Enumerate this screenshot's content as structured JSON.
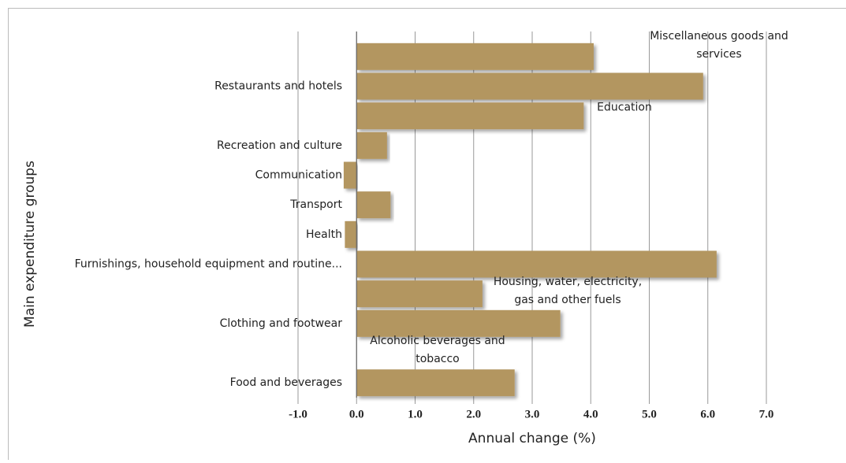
{
  "chart_data": {
    "type": "barh",
    "categories": [
      "Miscellaneous goods and services",
      "Restaurants and hotels",
      "Education",
      "Recreation and culture",
      "Communication",
      "Transport",
      "Health",
      "Furnishings, household equipment and routine...",
      "Housing, water, electricity, gas and other fuels",
      "Clothing and footwear",
      "Alcoholic beverages and tobacco",
      "Food and  beverages"
    ],
    "values": [
      4.05,
      5.92,
      3.88,
      0.52,
      -0.22,
      0.58,
      -0.2,
      6.15,
      2.15,
      3.48,
      0,
      2.7
    ],
    "color": "#b39660",
    "xlim": [
      -1,
      7
    ],
    "xticks": [
      {
        "value": -1,
        "label": "-1.0"
      },
      {
        "value": 0,
        "label": "0.0"
      },
      {
        "value": 1,
        "label": "1.0"
      },
      {
        "value": 2,
        "label": "2.0"
      },
      {
        "value": 3,
        "label": "3.0"
      },
      {
        "value": 4,
        "label": "4.0"
      },
      {
        "value": 5,
        "label": "5.0"
      },
      {
        "value": 6,
        "label": "6.0"
      },
      {
        "value": 7,
        "label": "7.0"
      }
    ],
    "x_label": "Annual change (%)",
    "y_label": "Main expenditure groups",
    "grid": true
  }
}
